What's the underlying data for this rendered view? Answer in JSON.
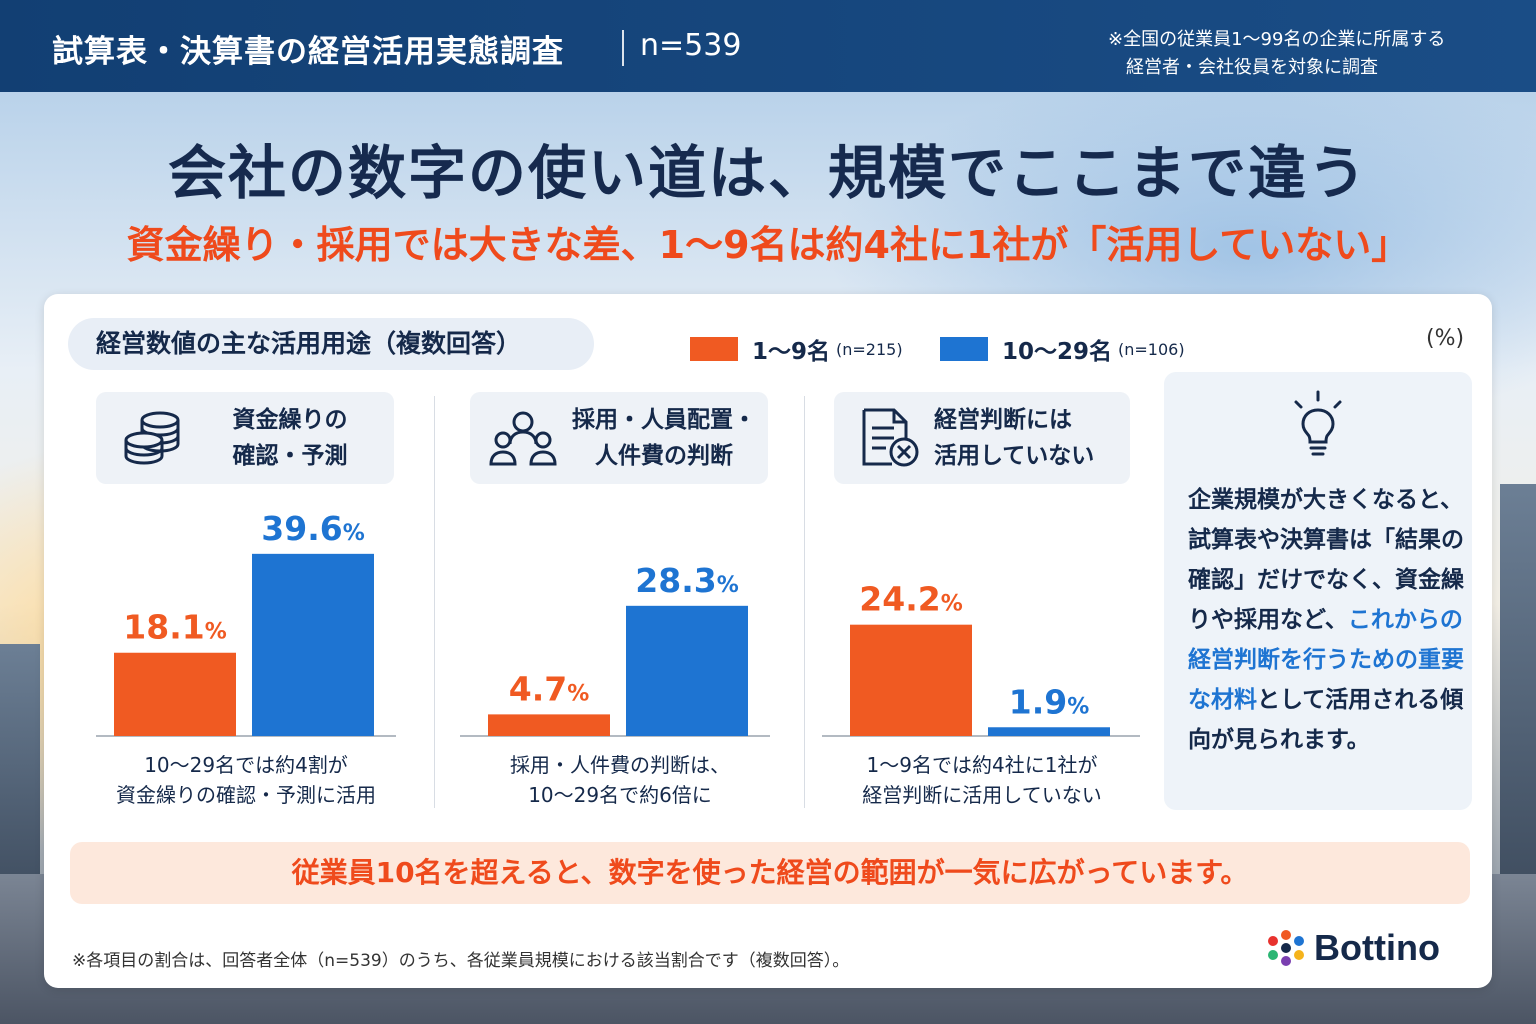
{
  "header": {
    "title": "試算表・決算書の経営活用実態調査",
    "sample": "n=539",
    "note_line1": "※全国の従業員1〜99名の企業に所属する",
    "note_line2": "経営者・会社役員を対象に調査"
  },
  "headline": "会社の数字の使い道は、規模でここまで違う",
  "subheadline": "資金繰り・採用では大きな差、1〜9名は約4社に1社が「活用していない」",
  "section_label": "経営数値の主な活用用途（複数回答）",
  "unit_label": "(%)",
  "colors": {
    "orange": "#f05a22",
    "blue": "#1e74d2",
    "navy": "#15294a"
  },
  "chart_data": {
    "type": "bar",
    "categories": [
      "資金繰りの確認・予測",
      "採用・人員配置・人件費の判断",
      "経営判断には活用していない"
    ],
    "category_lines": [
      [
        "資金繰りの",
        "確認・予測"
      ],
      [
        "採用・人員配置・",
        "人件費の判断"
      ],
      [
        "経営判断には",
        "活用していない"
      ]
    ],
    "category_icons": [
      "coins-icon",
      "people-icon",
      "document-x-icon"
    ],
    "series": [
      {
        "name": "1〜9名",
        "n_label": "(n=215)",
        "values": [
          18.1,
          4.7,
          24.2
        ],
        "color": "#f05a22"
      },
      {
        "name": "10〜29名",
        "n_label": "(n=106)",
        "values": [
          39.6,
          28.3,
          1.9
        ],
        "color": "#1e74d2"
      }
    ],
    "value_labels": [
      [
        "18.1",
        "4.7",
        "24.2"
      ],
      [
        "39.6",
        "28.3",
        "1.9"
      ]
    ],
    "ylim": [
      0,
      40
    ],
    "percent_sign": "%",
    "captions": [
      [
        "10〜29名では約4割が",
        "資金繰りの確認・予測に活用"
      ],
      [
        "採用・人件費の判断は、",
        "10〜29名で約6倍に"
      ],
      [
        "1〜9名では約4社に1社が",
        "経営判断に活用していない"
      ]
    ]
  },
  "insight": {
    "icon": "lightbulb-icon",
    "text_plain_1": "企業規模が大きくなると、試算表や決算書は「結果の確認」だけでなく、資金繰りや採用など、",
    "text_highlight": "これからの経営判断を行うための重要な材料",
    "text_plain_2": "として活用される傾向が見られます。"
  },
  "banner": "従業員10名を超えると、数字を使った経営の範囲が一気に広がっています。",
  "footnote": "※各項目の割合は、回答者全体（n=539）のうち、各従業員規模における該当割合です（複数回答）。",
  "brand": {
    "name": "Bottino",
    "icon": "bottino-logo-icon"
  }
}
